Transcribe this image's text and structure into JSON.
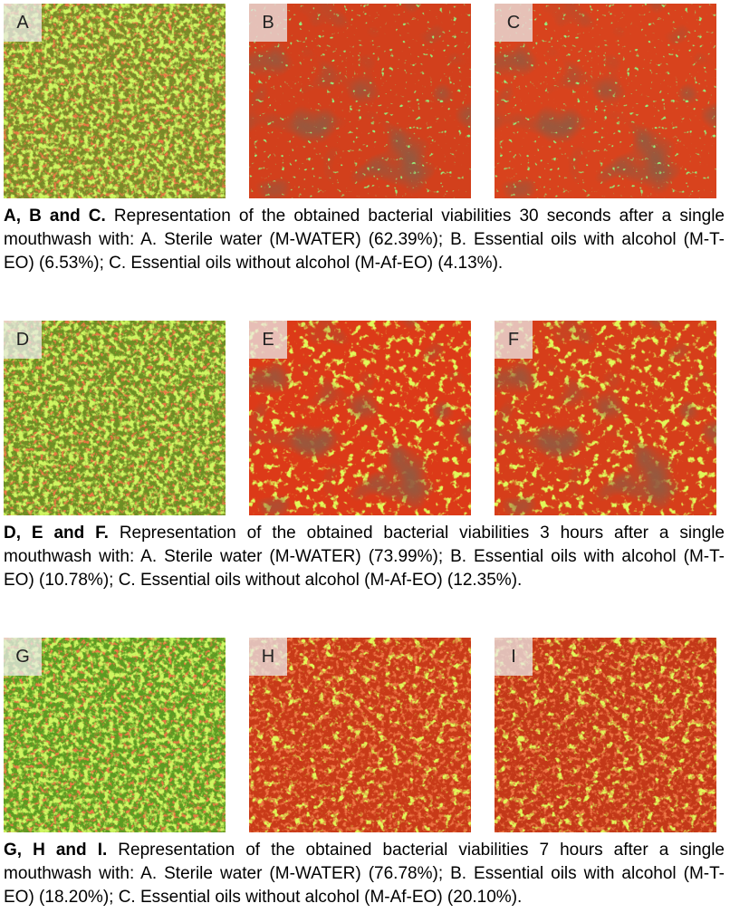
{
  "rows": [
    {
      "panels": [
        "A",
        "B",
        "C"
      ],
      "caption": {
        "lead": "A, B and C.",
        "text": "Representation of the obtained bacterial viabilities 30 seconds after a single mouthwash with: A. Sterile water (M-WATER) (62.39%); B. Essential oils with alcohol (M-T-EO) (6.53%); C. Essential oils without alcohol (M-Af-EO) (4.13%)."
      }
    },
    {
      "panels": [
        "D",
        "E",
        "F"
      ],
      "caption": {
        "lead": "D, E and F.",
        "text": "Representation of the obtained bacterial viabilities 3 hours after a single mouthwash with: A. Sterile water (M-WATER) (73.99%); B. Essential oils with alcohol (M-T-EO) (10.78%); C. Essential oils without alcohol (M-Af-EO) (12.35%)."
      }
    },
    {
      "panels": [
        "G",
        "H",
        "I"
      ],
      "caption": {
        "lead": "G, H and I.",
        "text": "Representation of the obtained bacterial viabilities 7 hours after a single mouthwash with: A. Sterile water (M-WATER) (76.78%); B. Essential oils with alcohol (M-T-EO) (18.20%); C. Essential oils without alcohol (M-Af-EO) (20.10%)."
      }
    }
  ]
}
